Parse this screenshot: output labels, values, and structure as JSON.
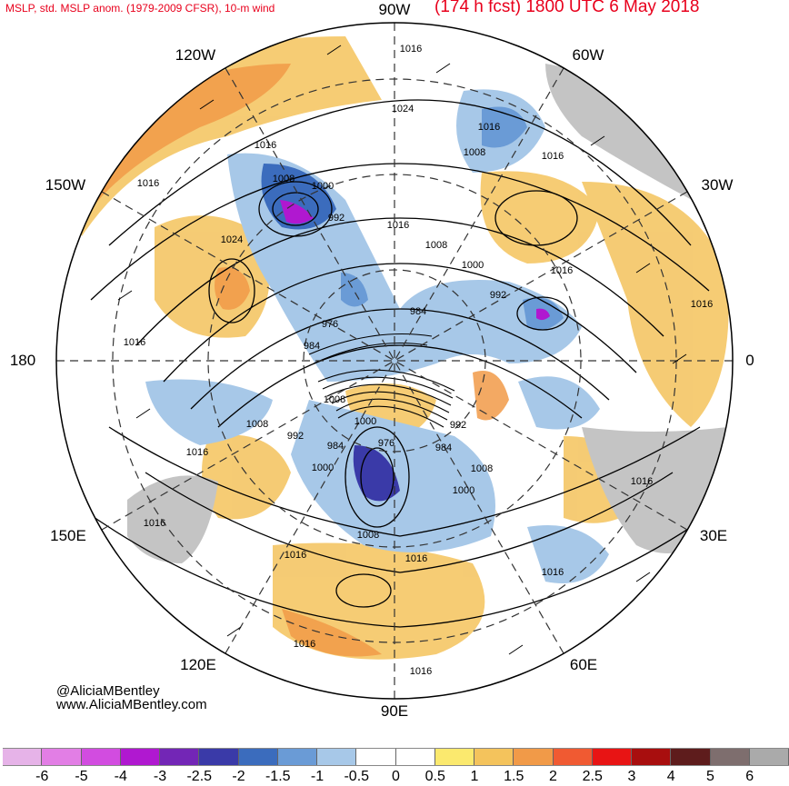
{
  "header": {
    "left_title": "MSLP, std. MSLP anom. (1979-2009 CFSR), 10-m wind",
    "right_title": "(174 h fcst) 1800 UTC 6 May 2018"
  },
  "credits": {
    "handle": "@AliciaMBentley",
    "website": "www.AliciaMBentley.com"
  },
  "longitude_labels": {
    "top": "90W",
    "left_top": "120W",
    "right_top": "60W",
    "upper_left": "150W",
    "upper_right": "30W",
    "left": "180",
    "right": "0",
    "lower_left": "150E",
    "lower_right": "30E",
    "bottom_left": "120E",
    "bottom_right": "60E",
    "bottom": "90E"
  },
  "isobar_labels": [
    "1016",
    "1024",
    "1016",
    "1016",
    "1008",
    "1016",
    "1016",
    "1008",
    "1000",
    "992",
    "1016",
    "1024",
    "1008",
    "1000",
    "1016",
    "992",
    "1016",
    "984",
    "976",
    "984",
    "1016",
    "1008",
    "1000",
    "992",
    "1008",
    "992",
    "984",
    "976",
    "984",
    "1008",
    "1000",
    "1016",
    "1000",
    "1016",
    "1016",
    "1008",
    "1016",
    "1016",
    "1016",
    "1016",
    "1016"
  ],
  "colorbar": {
    "ticks": [
      "-6",
      "-5",
      "-4",
      "-3",
      "-2.5",
      "-2",
      "-1.5",
      "-1",
      "-0.5",
      "0",
      "0.5",
      "1",
      "1.5",
      "2",
      "2.5",
      "3",
      "4",
      "5",
      "6"
    ],
    "colors": [
      "#e6b3e8",
      "#e27ee5",
      "#d24ce0",
      "#b018d0",
      "#7326b6",
      "#3a3aa8",
      "#3b6cbd",
      "#6a9bd6",
      "#a7c8e8",
      "#ffffff",
      "#ffffff",
      "#fbe96e",
      "#f4c35c",
      "#f19a48",
      "#f05a32",
      "#e81414",
      "#a80e0e",
      "#5e1c1c",
      "#7e6e6e",
      "#aaaaaa"
    ]
  },
  "map_legend": {
    "land_anomaly_gray": "#c4c4c4",
    "positive_anomaly": "#f4c35c",
    "negative_anomaly": "#6a9bd6"
  }
}
